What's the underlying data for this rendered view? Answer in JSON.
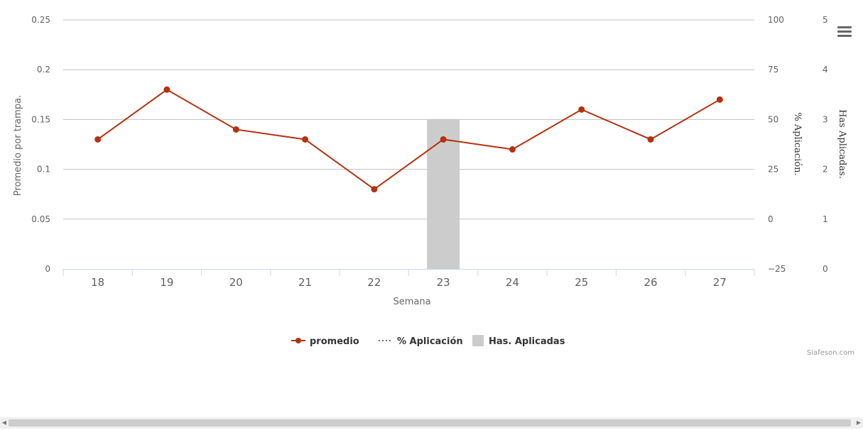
{
  "chart_data": {
    "type": "line",
    "title": "",
    "xlabel": "Semana",
    "categories": [
      "18",
      "19",
      "20",
      "21",
      "22",
      "23",
      "24",
      "25",
      "26",
      "27"
    ],
    "y_axes": [
      {
        "title": "Promedio por trampa.",
        "side": "left",
        "range": [
          0,
          0.25
        ],
        "ticks": [
          "0",
          "0.05",
          "0.1",
          "0.15",
          "0.2",
          "0.25"
        ]
      },
      {
        "title": "% Aplicación.",
        "side": "right",
        "range": [
          -25,
          100
        ],
        "ticks": [
          "−25",
          "0",
          "25",
          "50",
          "75",
          "100"
        ]
      },
      {
        "title": "Has Aplicadas.",
        "side": "right",
        "range": [
          0,
          5
        ],
        "ticks": [
          "0",
          "1",
          "2",
          "3",
          "4",
          "5"
        ]
      }
    ],
    "series": [
      {
        "name": "promedio",
        "type": "line",
        "color": "#b5310f",
        "axis": 0,
        "values": [
          0.13,
          0.18,
          0.14,
          0.13,
          0.08,
          0.13,
          0.12,
          0.16,
          0.13,
          0.17
        ]
      },
      {
        "name": "% Aplicación",
        "type": "line-dotted",
        "color": "#5f5fbf",
        "axis": 1,
        "values": [
          null,
          null,
          null,
          null,
          null,
          null,
          null,
          null,
          null,
          null
        ]
      },
      {
        "name": "Has. Aplicadas",
        "type": "bar",
        "color": "#cccccc",
        "axis": 2,
        "values": [
          null,
          null,
          null,
          null,
          null,
          3,
          null,
          null,
          null,
          null
        ]
      }
    ],
    "grid": true,
    "legend_position": "bottom-center"
  },
  "credit": "Siafeson.com",
  "icons": {
    "menu": "hamburger-menu-icon",
    "scroll_left": "arrow-left-icon",
    "scroll_right": "arrow-right-icon"
  }
}
